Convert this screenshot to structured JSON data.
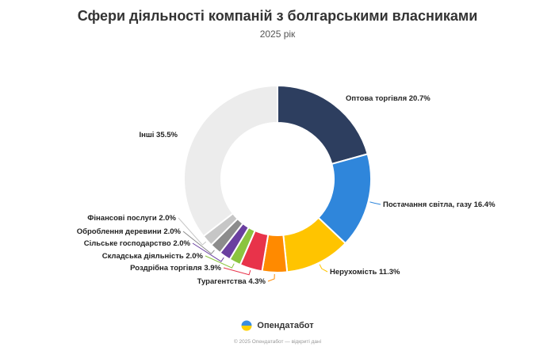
{
  "chart_data": {
    "type": "pie",
    "title": "Сфери діяльності компаній з болгарськими власниками",
    "subtitle": "2025 рік",
    "slices": [
      {
        "label": "Оптова торгівля 20.7%",
        "value": 20.7,
        "color": "#2d3e5f"
      },
      {
        "label": "Постачання світла, газу 16.4%",
        "value": 16.4,
        "color": "#2f86db"
      },
      {
        "label": "Нерухомість 11.3%",
        "value": 11.3,
        "color": "#ffc400"
      },
      {
        "label": "Турагентства 4.3%",
        "value": 4.3,
        "color": "#ff8a00"
      },
      {
        "label": "Роздрібна торгівля 3.9%",
        "value": 3.9,
        "color": "#e8334a"
      },
      {
        "label": "Складська діяльність 2.0%",
        "value": 2.0,
        "color": "#8bc43f"
      },
      {
        "label": "Сільське господарство 2.0%",
        "value": 2.0,
        "color": "#6a3fa0"
      },
      {
        "label": "Оброблення деревини 2.0%",
        "value": 2.0,
        "color": "#8c8c8c"
      },
      {
        "label": "Фінансові послуги 2.0%",
        "value": 2.0,
        "color": "#c6c6c6"
      },
      {
        "label": "Інші 35.5%",
        "value": 35.5,
        "color": "#ececec"
      }
    ]
  },
  "brand": {
    "name": "Опендатабот"
  },
  "footer": {
    "text": "© 2025 Опендатабот — відкриті дані"
  }
}
